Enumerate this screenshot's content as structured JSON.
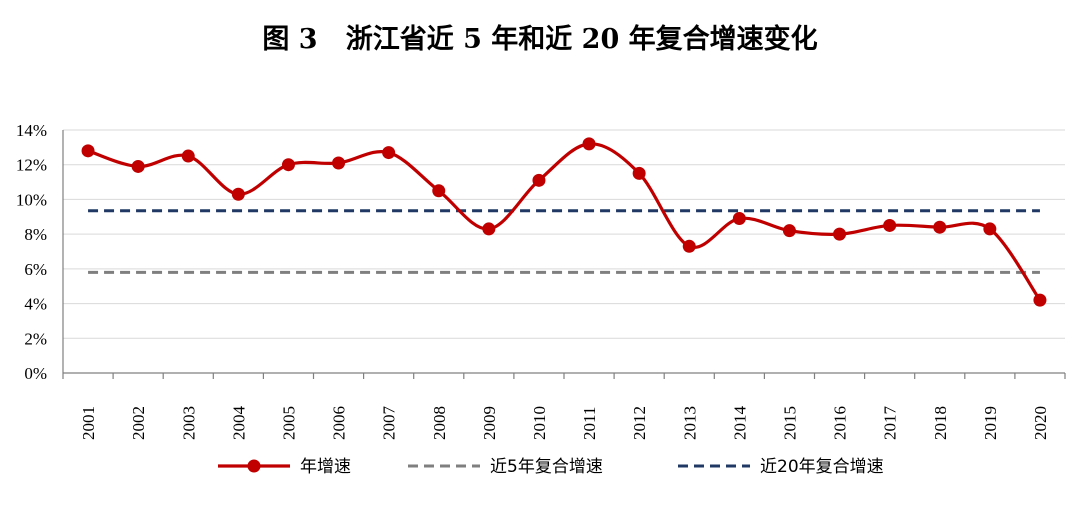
{
  "chart_data": {
    "type": "line",
    "title": "图 3   浙江省近 5 年和近 20 年复合增速变化",
    "categories": [
      "2001",
      "2002",
      "2003",
      "2004",
      "2005",
      "2006",
      "2007",
      "2008",
      "2009",
      "2010",
      "2011",
      "2012",
      "2013",
      "2014",
      "2015",
      "2016",
      "2017",
      "2018",
      "2019",
      "2020"
    ],
    "ylim": [
      0,
      14
    ],
    "yticks": [
      "0%",
      "2%",
      "4%",
      "6%",
      "8%",
      "10%",
      "12%",
      "14%"
    ],
    "grid": true,
    "legend_position": "bottom",
    "series": [
      {
        "name": "年增速",
        "style": "smooth-line-markers",
        "color": "#c00000",
        "values": [
          12.8,
          11.9,
          12.5,
          10.3,
          12.0,
          12.1,
          12.7,
          10.5,
          8.3,
          11.1,
          13.2,
          11.5,
          7.3,
          8.9,
          8.2,
          8.0,
          8.5,
          8.4,
          8.3,
          4.2
        ]
      },
      {
        "name": "近5年复合增速",
        "style": "dashed",
        "color": "#7f7f7f",
        "constant": 5.8
      },
      {
        "name": "近20年复合增速",
        "style": "dashed",
        "color": "#1f3864",
        "constant": 9.35
      }
    ]
  }
}
